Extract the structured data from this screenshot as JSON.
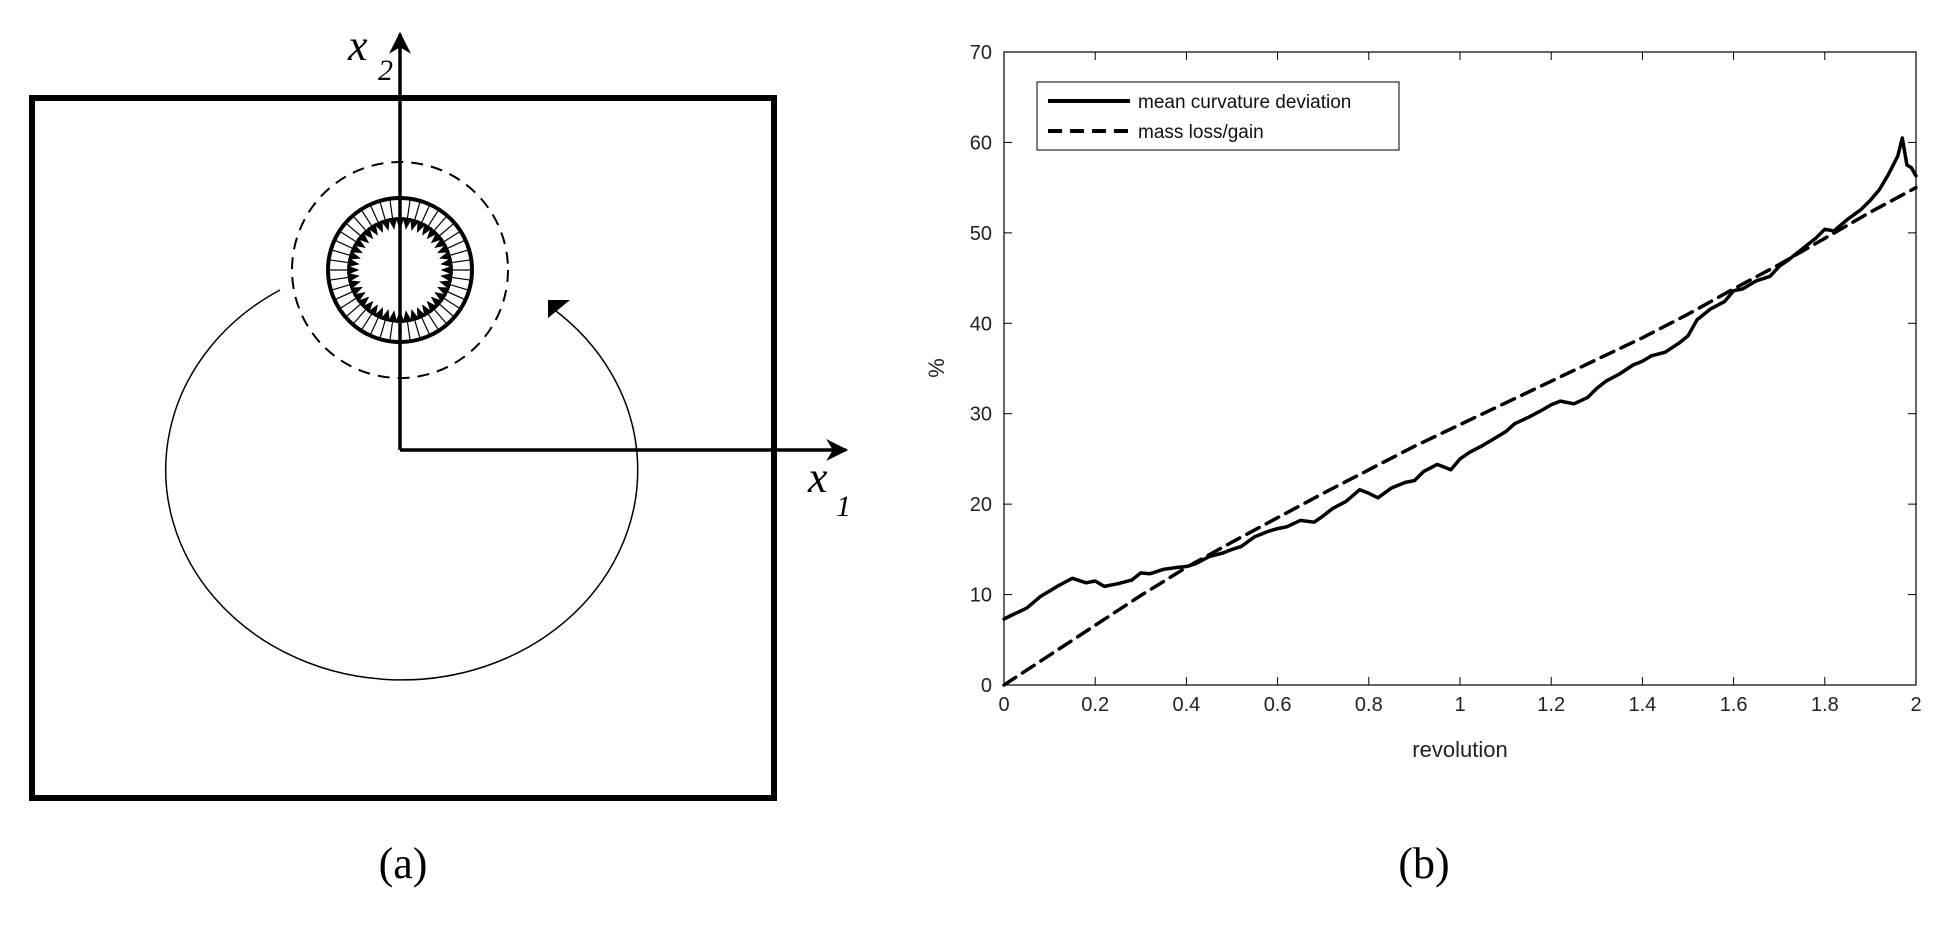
{
  "panel_a": {
    "caption": "(a)",
    "x1_label": "x",
    "x1_sub": "1",
    "x2_label": "x",
    "x2_sub": "2"
  },
  "panel_b": {
    "caption": "(b)"
  },
  "chart_data": {
    "type": "line",
    "xlabel": "revolution",
    "ylabel": "%",
    "xlim": [
      0,
      2
    ],
    "ylim": [
      0,
      70
    ],
    "xticks": [
      0,
      0.2,
      0.4,
      0.6,
      0.8,
      1,
      1.2,
      1.4,
      1.6,
      1.8,
      2
    ],
    "xtick_labels": [
      "0",
      "0.2",
      "0.4",
      "0.6",
      "0.8",
      "1",
      "1.2",
      "1.4",
      "1.6",
      "1.8",
      "2"
    ],
    "yticks": [
      0,
      10,
      20,
      30,
      40,
      50,
      60,
      70
    ],
    "ytick_labels": [
      "0",
      "10",
      "20",
      "30",
      "40",
      "50",
      "60",
      "70"
    ],
    "grid": false,
    "legend_position": "top-left",
    "series": [
      {
        "name": "mean curvature deviation",
        "style": "solid",
        "x": [
          0,
          0.02,
          0.05,
          0.08,
          0.1,
          0.12,
          0.15,
          0.18,
          0.2,
          0.22,
          0.25,
          0.28,
          0.3,
          0.32,
          0.35,
          0.38,
          0.4,
          0.42,
          0.45,
          0.48,
          0.5,
          0.52,
          0.55,
          0.58,
          0.6,
          0.62,
          0.65,
          0.68,
          0.7,
          0.72,
          0.75,
          0.78,
          0.8,
          0.82,
          0.85,
          0.88,
          0.9,
          0.92,
          0.95,
          0.98,
          1.0,
          1.02,
          1.05,
          1.08,
          1.1,
          1.12,
          1.15,
          1.18,
          1.2,
          1.22,
          1.25,
          1.28,
          1.3,
          1.32,
          1.35,
          1.38,
          1.4,
          1.42,
          1.45,
          1.48,
          1.5,
          1.52,
          1.55,
          1.58,
          1.6,
          1.62,
          1.65,
          1.68,
          1.7,
          1.72,
          1.75,
          1.78,
          1.8,
          1.82,
          1.85,
          1.88,
          1.9,
          1.92,
          1.94,
          1.96,
          1.97,
          1.98,
          1.99,
          2.0
        ],
        "y": [
          7.3,
          7.8,
          8.5,
          9.8,
          10.4,
          11.0,
          11.8,
          11.3,
          11.5,
          10.9,
          11.2,
          11.6,
          12.4,
          12.3,
          12.8,
          13.0,
          13.1,
          13.4,
          14.2,
          14.6,
          15.0,
          15.3,
          16.4,
          17.0,
          17.3,
          17.5,
          18.2,
          18.0,
          18.7,
          19.5,
          20.3,
          21.6,
          21.2,
          20.7,
          21.8,
          22.4,
          22.6,
          23.6,
          24.4,
          23.8,
          25.0,
          25.7,
          26.5,
          27.4,
          28.0,
          28.9,
          29.6,
          30.4,
          31.0,
          31.4,
          31.1,
          31.8,
          32.8,
          33.6,
          34.4,
          35.4,
          35.8,
          36.4,
          36.8,
          37.8,
          38.6,
          40.4,
          41.6,
          42.4,
          43.6,
          43.8,
          44.7,
          45.2,
          46.3,
          47.0,
          48.2,
          49.4,
          50.4,
          50.2,
          51.5,
          52.6,
          53.6,
          54.8,
          56.5,
          58.5,
          60.5,
          57.5,
          57.2,
          56.3
        ]
      },
      {
        "name": "mass loss/gain",
        "style": "dashed",
        "x": [
          0,
          0.1,
          0.2,
          0.3,
          0.4,
          0.5,
          0.6,
          0.7,
          0.8,
          0.9,
          1.0,
          1.1,
          1.2,
          1.3,
          1.4,
          1.5,
          1.6,
          1.7,
          1.8,
          1.9,
          2.0
        ],
        "y": [
          0,
          3.3,
          6.6,
          9.9,
          13.0,
          15.8,
          18.5,
          21.2,
          23.8,
          26.4,
          28.8,
          31.2,
          33.6,
          36.0,
          38.4,
          41.0,
          43.8,
          46.5,
          49.4,
          52.3,
          55.0
        ]
      }
    ]
  }
}
